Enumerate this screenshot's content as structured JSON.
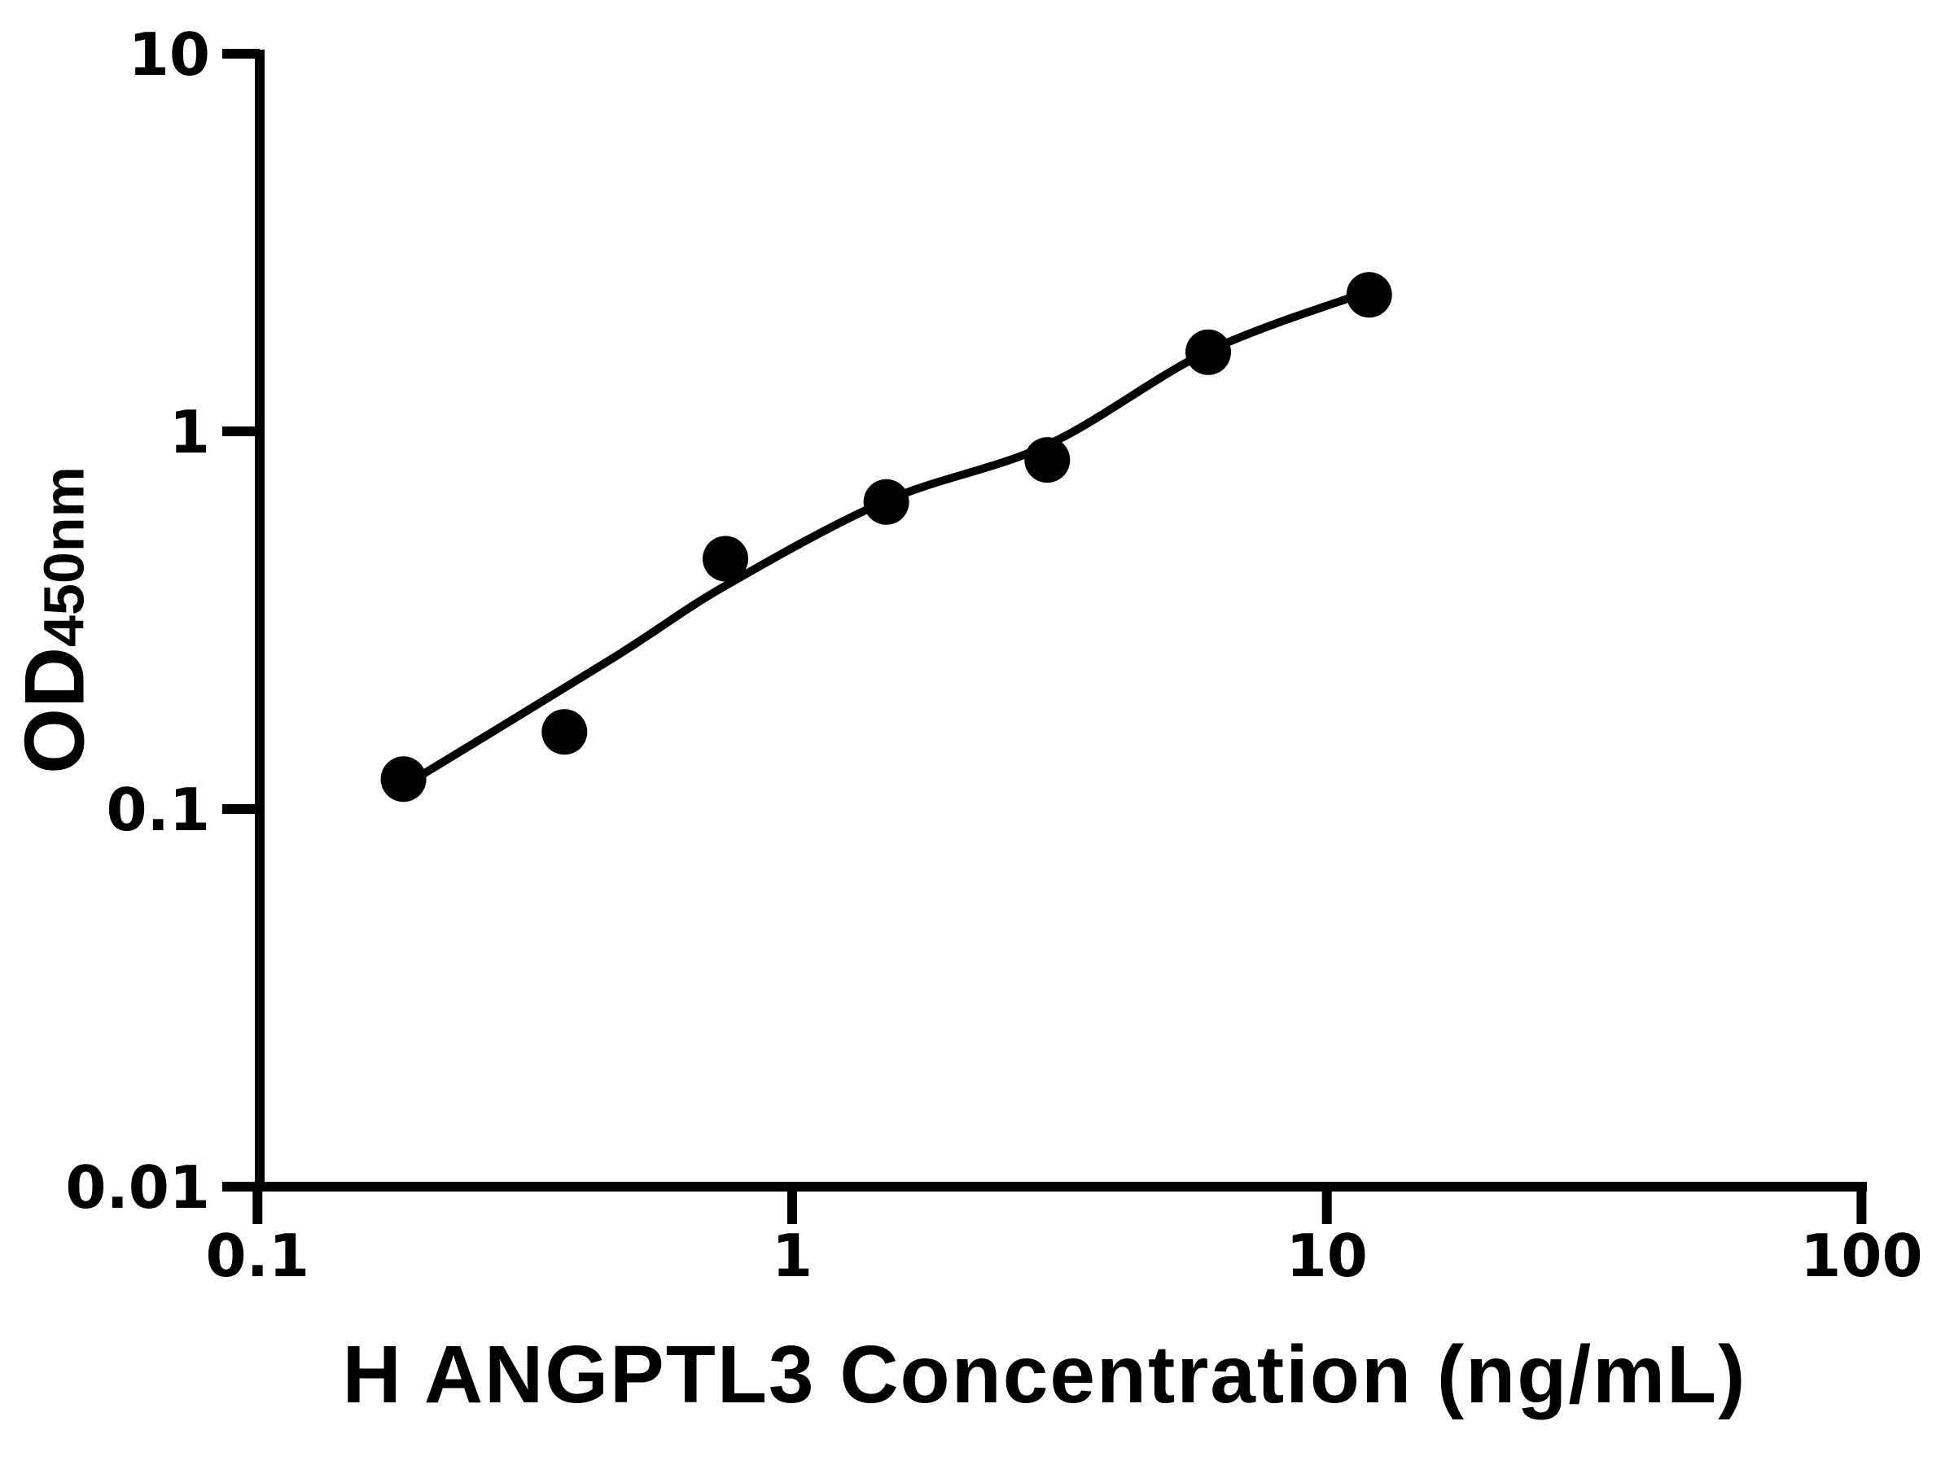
{
  "chart_data": {
    "type": "scatter",
    "title": "",
    "xlabel": "H ANGPTL3 Concentration (ng/mL)",
    "ylabel_main": "OD",
    "ylabel_sub": "450nm",
    "x_scale": "log",
    "y_scale": "log",
    "xlim": [
      0.1,
      100
    ],
    "ylim": [
      0.01,
      10
    ],
    "grid": false,
    "legend": false,
    "axis_color": "#000000",
    "marker_color": "#000000",
    "line_color": "#000000",
    "x_ticks": [
      {
        "value": 0.1,
        "label": "0.1"
      },
      {
        "value": 1,
        "label": "1"
      },
      {
        "value": 10,
        "label": "10"
      },
      {
        "value": 100,
        "label": "100"
      }
    ],
    "y_ticks": [
      {
        "value": 10,
        "label": "10"
      },
      {
        "value": 1,
        "label": "1"
      },
      {
        "value": 0.1,
        "label": "0.1"
      },
      {
        "value": 0.01,
        "label": "0.01"
      }
    ],
    "points": [
      {
        "x": 0.1875,
        "od": 0.12
      },
      {
        "x": 0.375,
        "od": 0.16
      },
      {
        "x": 0.75,
        "od": 0.46
      },
      {
        "x": 1.5,
        "od": 0.65
      },
      {
        "x": 3,
        "od": 0.84
      },
      {
        "x": 6,
        "od": 1.62
      },
      {
        "x": 12,
        "od": 2.3
      }
    ],
    "fit_curve": [
      [
        0.1875,
        0.115
      ],
      [
        0.46,
        0.25
      ],
      [
        0.75,
        0.39
      ],
      [
        1.5,
        0.655
      ],
      [
        3.0,
        0.92
      ],
      [
        6.0,
        1.63
      ],
      [
        12.0,
        2.35
      ]
    ]
  }
}
